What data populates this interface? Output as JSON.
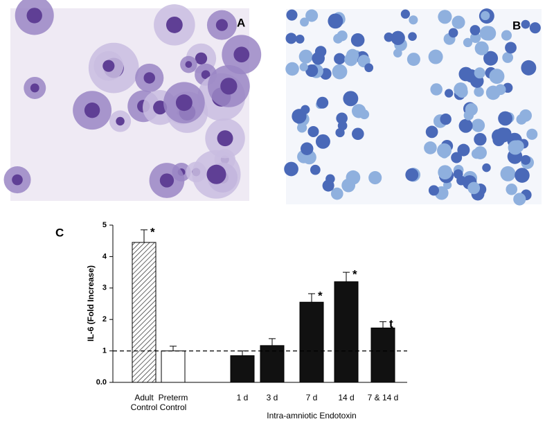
{
  "panels": {
    "a": "A",
    "b": "B"
  },
  "chart_data": {
    "type": "bar",
    "panel_label": "C",
    "y_label": "IL-6 (Fold Increase)",
    "x_group_label": "Intra-amniotic Endotoxin",
    "categories": [
      "Adult\nControl",
      "Preterm\nControl",
      "1 d",
      "3 d",
      "7 d",
      "14 d",
      "7 & 14 d"
    ],
    "values": [
      4.45,
      1.0,
      0.85,
      1.17,
      2.55,
      3.2,
      1.73
    ],
    "errors": [
      0.4,
      0.15,
      0.15,
      0.22,
      0.27,
      0.3,
      0.2
    ],
    "markers": [
      "*",
      null,
      null,
      null,
      "*",
      "*",
      "t"
    ],
    "fills": [
      "hatch",
      "#ffffff",
      "#111111",
      "#111111",
      "#111111",
      "#111111",
      "#111111"
    ],
    "reference_line": 1,
    "ylim": [
      0,
      5
    ],
    "yticks": [
      {
        "value": 0,
        "label": "0.0"
      },
      1,
      2,
      3,
      4,
      5
    ]
  }
}
